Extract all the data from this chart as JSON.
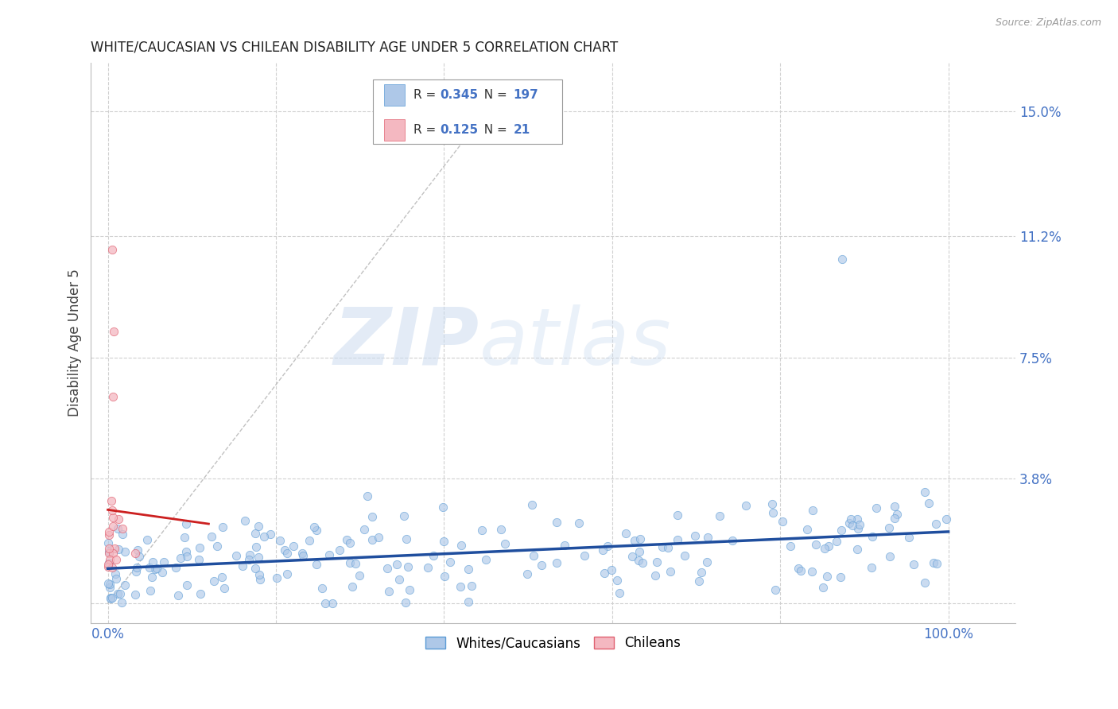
{
  "title": "WHITE/CAUCASIAN VS CHILEAN DISABILITY AGE UNDER 5 CORRELATION CHART",
  "source": "Source: ZipAtlas.com",
  "ylabel": "Disability Age Under 5",
  "y_ticks": [
    0.0,
    0.038,
    0.075,
    0.112,
    0.15
  ],
  "y_tick_labels": [
    "",
    "3.8%",
    "7.5%",
    "11.2%",
    "15.0%"
  ],
  "xlim": [
    -0.02,
    1.08
  ],
  "ylim": [
    -0.006,
    0.165
  ],
  "blue_color": "#aec8e8",
  "blue_edge_color": "#5b9bd5",
  "pink_color": "#f4b8c1",
  "pink_edge_color": "#e06070",
  "regression_blue_color": "#1f4e9e",
  "regression_pink_color": "#cc2020",
  "legend_R_blue": "0.345",
  "legend_N_blue": "197",
  "legend_R_pink": "0.125",
  "legend_N_pink": "21",
  "legend_label_blue": "Whites/Caucasians",
  "legend_label_pink": "Chileans",
  "watermark_zip": "ZIP",
  "watermark_atlas": "atlas",
  "background_color": "#ffffff",
  "grid_color": "#d0d0d0",
  "title_color": "#222222",
  "axis_label_color": "#444444",
  "tick_label_color": "#4472c4",
  "marker_size": 55,
  "blue_alpha": 0.65,
  "pink_alpha": 0.75,
  "seed": 7,
  "n_blue": 197,
  "n_pink": 21,
  "R_blue": 0.345,
  "R_pink": 0.125
}
